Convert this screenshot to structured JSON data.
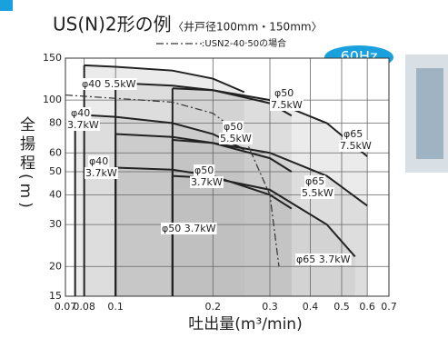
{
  "chart_data": {
    "type": "line",
    "title": "US(N)2形の例",
    "subtitle": "〈井戸径100mm・150mm〉",
    "xlabel": "吐出量(m³/min)",
    "ylabel": "全揚程(m)",
    "badge": "60Hz",
    "xscale": "log",
    "yscale": "log",
    "grid": true,
    "xlim": [
      0.07,
      0.7
    ],
    "ylim": [
      15,
      150
    ],
    "xticks": [
      0.07,
      0.08,
      0.1,
      0.2,
      0.3,
      0.4,
      0.5,
      0.6,
      0.7
    ],
    "yticks": [
      15,
      20,
      30,
      40,
      50,
      60,
      80,
      100,
      150
    ],
    "series": [
      {
        "color": "#222222",
        "x": [
          0.08,
          0.1,
          0.15,
          0.2,
          0.25
        ],
        "values": [
          140,
          138,
          133,
          123,
          108
        ]
      },
      {
        "color": "#222222",
        "x": [
          0.1,
          0.15,
          0.2,
          0.3,
          0.35
        ],
        "values": [
          118,
          115,
          110,
          97,
          86
        ]
      },
      {
        "color": "#222222",
        "x": [
          0.15,
          0.2,
          0.3,
          0.45,
          0.6
        ],
        "values": [
          112,
          110,
          100,
          80,
          58
        ]
      },
      {
        "color": "#222222",
        "x": [
          0.075,
          0.1,
          0.15,
          0.2,
          0.25
        ],
        "values": [
          87,
          85,
          80,
          72,
          62
        ]
      },
      {
        "color": "#222222",
        "x": [
          0.1,
          0.15,
          0.2,
          0.3,
          0.35
        ],
        "values": [
          72,
          70,
          66,
          57,
          50
        ]
      },
      {
        "color": "#222222",
        "x": [
          0.15,
          0.2,
          0.3,
          0.45,
          0.6
        ],
        "values": [
          68,
          66,
          60,
          48,
          36
        ]
      },
      {
        "color": "#222222",
        "x": [
          0.1,
          0.15,
          0.2,
          0.3,
          0.35
        ],
        "values": [
          52,
          51,
          48,
          40,
          35
        ]
      },
      {
        "color": "#222222",
        "x": [
          0.15,
          0.2,
          0.3,
          0.45,
          0.55
        ],
        "values": [
          48,
          47,
          42,
          30,
          22
        ]
      },
      {
        "name": ":USN2-40·50の場合",
        "color": "#333333",
        "dash": true,
        "x": [
          0.07,
          0.15,
          0.2,
          0.25,
          0.3,
          0.32
        ],
        "values": [
          105,
          98,
          88,
          70,
          40,
          20
        ]
      }
    ],
    "annotations": [
      [
        "φ40 5.5kW"
      ],
      [
        "φ40",
        "3.7kW"
      ],
      [
        "φ50",
        "7.5kW"
      ],
      [
        "φ50",
        "5.5kW"
      ],
      [
        "φ65",
        "7.5kW"
      ],
      [
        "φ40",
        "3.7kW"
      ],
      [
        "φ50",
        "3.7kW"
      ],
      [
        "φ65",
        "5.5kW"
      ],
      [
        "φ50 3.7kW"
      ],
      [
        "φ65 3.7kW"
      ]
    ]
  }
}
